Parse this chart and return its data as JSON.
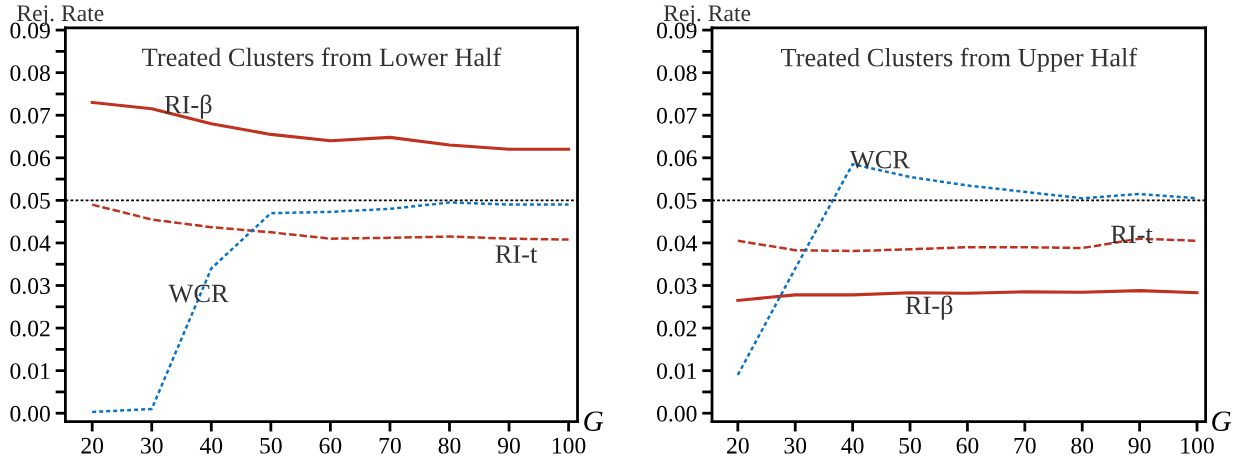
{
  "chart_data": [
    {
      "type": "line",
      "title": "Treated Clusters from Lower Half",
      "xlabel": "G",
      "ylabel": "Rej. Rate",
      "x": [
        20,
        30,
        40,
        50,
        60,
        70,
        80,
        90,
        100
      ],
      "series": [
        {
          "name": "RI-β",
          "color": "#c0311f",
          "line_style": "solid",
          "values": [
            0.073,
            0.0715,
            0.068,
            0.0655,
            0.064,
            0.0648,
            0.063,
            0.062,
            0.062
          ]
        },
        {
          "name": "RI-t",
          "color": "#c0311f",
          "line_style": "dashed",
          "values": [
            0.049,
            0.0455,
            0.0437,
            0.0425,
            0.041,
            0.0412,
            0.0415,
            0.041,
            0.0408
          ]
        },
        {
          "name": "WCR",
          "color": "#0b72c4",
          "line_style": "dotted",
          "values": [
            0.0003,
            0.001,
            0.034,
            0.047,
            0.0473,
            0.048,
            0.0495,
            0.049,
            0.049
          ]
        }
      ],
      "ref_lines": [
        {
          "axis": "y",
          "value": 0.05,
          "color": "#000000",
          "line_style": "dotted"
        }
      ],
      "xlim": [
        15.5,
        101.5
      ],
      "xticks": [
        20,
        30,
        40,
        50,
        60,
        70,
        80,
        90,
        100
      ],
      "ylim": [
        -0.002,
        0.0905
      ],
      "yticks": [
        {
          "value": 0,
          "label": "0.00"
        },
        {
          "value": 0.005,
          "label": null
        },
        {
          "value": 0.01,
          "label": "0.01"
        },
        {
          "value": 0.015,
          "label": null
        },
        {
          "value": 0.02,
          "label": "0.02"
        },
        {
          "value": 0.025,
          "label": null
        },
        {
          "value": 0.03,
          "label": "0.03"
        },
        {
          "value": 0.035,
          "label": null
        },
        {
          "value": 0.04,
          "label": "0.04"
        },
        {
          "value": 0.045,
          "label": null
        },
        {
          "value": 0.05,
          "label": "0.05"
        },
        {
          "value": 0.055,
          "label": null
        },
        {
          "value": 0.06,
          "label": "0.06"
        },
        {
          "value": 0.065,
          "label": null
        },
        {
          "value": 0.07,
          "label": "0.07"
        },
        {
          "value": 0.075,
          "label": null
        },
        {
          "value": 0.08,
          "label": "0.08"
        },
        {
          "value": 0.085,
          "label": null
        },
        {
          "value": 0.09,
          "label": "0.09"
        }
      ],
      "grid": false,
      "legend": false
    },
    {
      "type": "line",
      "title": "Treated Clusters from Upper Half",
      "xlabel": "G",
      "ylabel": "Rej. Rate",
      "x": [
        20,
        30,
        40,
        50,
        60,
        70,
        80,
        90,
        100
      ],
      "series": [
        {
          "name": "RI-β",
          "color": "#c0311f",
          "line_style": "solid",
          "values": [
            0.0265,
            0.0278,
            0.0278,
            0.0283,
            0.0282,
            0.0285,
            0.0284,
            0.0288,
            0.0283
          ]
        },
        {
          "name": "RI-t",
          "color": "#c0311f",
          "line_style": "dashed",
          "values": [
            0.0405,
            0.0383,
            0.0381,
            0.0385,
            0.039,
            0.039,
            0.0388,
            0.041,
            0.0405
          ]
        },
        {
          "name": "WCR",
          "color": "#0b72c4",
          "line_style": "dotted",
          "values": [
            0.009,
            0.034,
            0.0585,
            0.0555,
            0.0535,
            0.052,
            0.0505,
            0.0515,
            0.0505
          ]
        }
      ],
      "ref_lines": [
        {
          "axis": "y",
          "value": 0.05,
          "color": "#000000",
          "line_style": "dotted"
        }
      ],
      "xlim": [
        15.5,
        101.5
      ],
      "xticks": [
        20,
        30,
        40,
        50,
        60,
        70,
        80,
        90,
        100
      ],
      "ylim": [
        -0.002,
        0.0905
      ],
      "yticks": [
        {
          "value": 0,
          "label": "0.00"
        },
        {
          "value": 0.005,
          "label": null
        },
        {
          "value": 0.01,
          "label": "0.01"
        },
        {
          "value": 0.015,
          "label": null
        },
        {
          "value": 0.02,
          "label": "0.02"
        },
        {
          "value": 0.025,
          "label": null
        },
        {
          "value": 0.03,
          "label": "0.03"
        },
        {
          "value": 0.035,
          "label": null
        },
        {
          "value": 0.04,
          "label": "0.04"
        },
        {
          "value": 0.045,
          "label": null
        },
        {
          "value": 0.05,
          "label": "0.05"
        },
        {
          "value": 0.055,
          "label": null
        },
        {
          "value": 0.06,
          "label": "0.06"
        },
        {
          "value": 0.065,
          "label": null
        },
        {
          "value": 0.07,
          "label": "0.07"
        },
        {
          "value": 0.075,
          "label": null
        },
        {
          "value": 0.08,
          "label": "0.08"
        },
        {
          "value": 0.085,
          "label": null
        },
        {
          "value": 0.09,
          "label": "0.09"
        }
      ],
      "grid": false,
      "legend": false
    }
  ]
}
